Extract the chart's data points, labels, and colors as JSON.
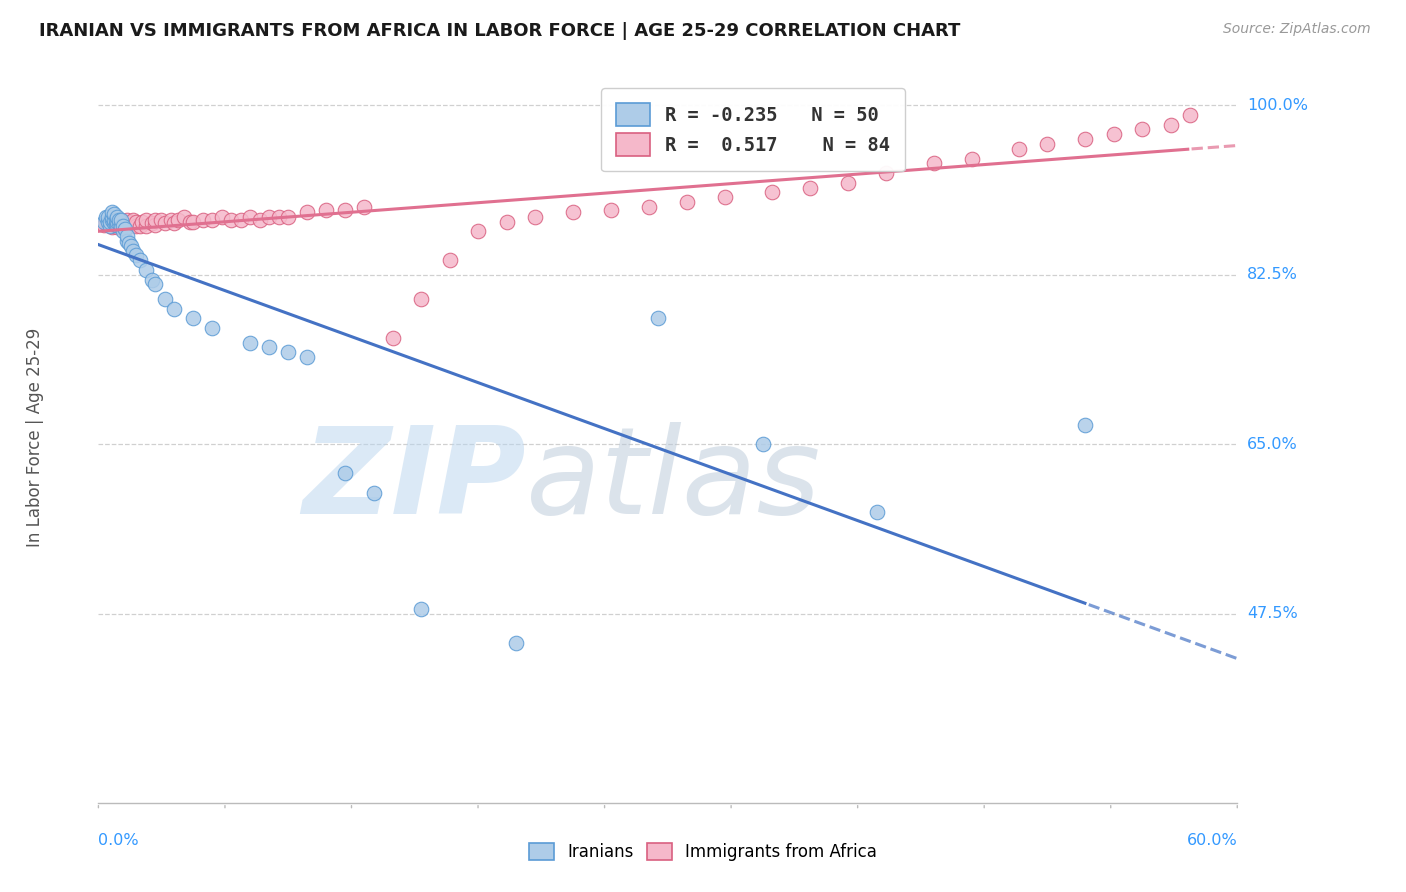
{
  "title": "IRANIAN VS IMMIGRANTS FROM AFRICA IN LABOR FORCE | AGE 25-29 CORRELATION CHART",
  "source": "Source: ZipAtlas.com",
  "ylabel": "In Labor Force | Age 25-29",
  "xmin": 0.0,
  "xmax": 0.6,
  "ymin": 0.28,
  "ymax": 1.035,
  "blue_R": -0.235,
  "blue_N": 50,
  "pink_R": 0.517,
  "pink_N": 84,
  "blue_color": "#aecce8",
  "blue_edge_color": "#5b9bd5",
  "blue_line_color": "#4472c4",
  "pink_color": "#f5b8ca",
  "pink_edge_color": "#d96080",
  "pink_line_color": "#e07090",
  "legend_blue": "Iranians",
  "legend_pink": "Immigrants from Africa",
  "ytick_vals": [
    1.0,
    0.825,
    0.65,
    0.475
  ],
  "ytick_labels": [
    "100.0%",
    "82.5%",
    "65.0%",
    "47.5%"
  ],
  "blue_x": [
    0.003,
    0.004,
    0.005,
    0.005,
    0.006,
    0.006,
    0.007,
    0.007,
    0.007,
    0.008,
    0.008,
    0.008,
    0.009,
    0.009,
    0.01,
    0.01,
    0.01,
    0.011,
    0.011,
    0.012,
    0.012,
    0.013,
    0.013,
    0.014,
    0.015,
    0.015,
    0.016,
    0.017,
    0.018,
    0.02,
    0.022,
    0.025,
    0.028,
    0.03,
    0.035,
    0.04,
    0.05,
    0.06,
    0.08,
    0.09,
    0.1,
    0.11,
    0.13,
    0.145,
    0.17,
    0.22,
    0.295,
    0.35,
    0.41,
    0.52
  ],
  "blue_y": [
    0.88,
    0.885,
    0.88,
    0.885,
    0.875,
    0.88,
    0.882,
    0.885,
    0.89,
    0.878,
    0.882,
    0.888,
    0.876,
    0.882,
    0.876,
    0.88,
    0.885,
    0.878,
    0.882,
    0.875,
    0.882,
    0.87,
    0.875,
    0.872,
    0.86,
    0.865,
    0.858,
    0.855,
    0.85,
    0.845,
    0.84,
    0.83,
    0.82,
    0.815,
    0.8,
    0.79,
    0.78,
    0.77,
    0.755,
    0.75,
    0.745,
    0.74,
    0.62,
    0.6,
    0.48,
    0.445,
    0.78,
    0.65,
    0.58,
    0.67
  ],
  "pink_x": [
    0.003,
    0.004,
    0.005,
    0.005,
    0.006,
    0.007,
    0.007,
    0.007,
    0.008,
    0.008,
    0.009,
    0.009,
    0.01,
    0.01,
    0.01,
    0.011,
    0.011,
    0.012,
    0.012,
    0.013,
    0.013,
    0.014,
    0.015,
    0.015,
    0.015,
    0.016,
    0.017,
    0.018,
    0.018,
    0.02,
    0.02,
    0.022,
    0.023,
    0.025,
    0.025,
    0.028,
    0.03,
    0.03,
    0.033,
    0.035,
    0.038,
    0.04,
    0.042,
    0.045,
    0.048,
    0.05,
    0.055,
    0.06,
    0.065,
    0.07,
    0.075,
    0.08,
    0.085,
    0.09,
    0.095,
    0.1,
    0.11,
    0.12,
    0.13,
    0.14,
    0.155,
    0.17,
    0.185,
    0.2,
    0.215,
    0.23,
    0.25,
    0.27,
    0.29,
    0.31,
    0.33,
    0.355,
    0.375,
    0.395,
    0.415,
    0.44,
    0.46,
    0.485,
    0.5,
    0.52,
    0.535,
    0.55,
    0.565,
    0.575
  ],
  "pink_y": [
    0.876,
    0.878,
    0.876,
    0.88,
    0.876,
    0.874,
    0.878,
    0.882,
    0.876,
    0.88,
    0.876,
    0.88,
    0.874,
    0.876,
    0.88,
    0.876,
    0.88,
    0.876,
    0.882,
    0.876,
    0.88,
    0.876,
    0.874,
    0.878,
    0.882,
    0.876,
    0.88,
    0.876,
    0.882,
    0.875,
    0.88,
    0.875,
    0.88,
    0.875,
    0.882,
    0.878,
    0.876,
    0.882,
    0.882,
    0.878,
    0.882,
    0.878,
    0.882,
    0.885,
    0.88,
    0.88,
    0.882,
    0.882,
    0.885,
    0.882,
    0.882,
    0.885,
    0.882,
    0.885,
    0.885,
    0.885,
    0.89,
    0.892,
    0.892,
    0.895,
    0.76,
    0.8,
    0.84,
    0.87,
    0.88,
    0.885,
    0.89,
    0.892,
    0.895,
    0.9,
    0.905,
    0.91,
    0.915,
    0.92,
    0.93,
    0.94,
    0.945,
    0.955,
    0.96,
    0.965,
    0.97,
    0.975,
    0.98,
    0.99
  ],
  "bg": "#ffffff",
  "grid_color": "#d0d0d0",
  "tick_label_color": "#3399ff",
  "title_color": "#1a1a1a",
  "source_color": "#999999"
}
